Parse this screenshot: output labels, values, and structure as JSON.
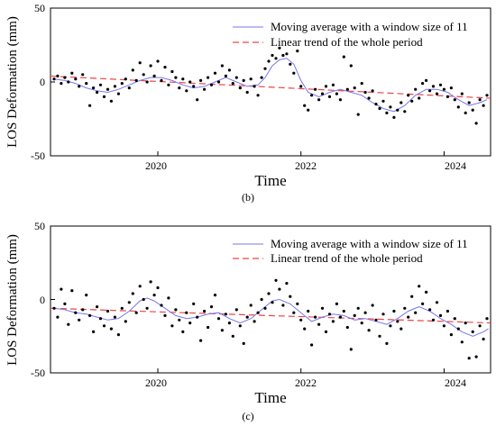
{
  "chart_data": [
    {
      "type": "scatter",
      "panel_label": "(b)",
      "xlabel": "Time",
      "ylabel": "LOS Deformation (mm)",
      "xlim": [
        2018.5,
        2024.65
      ],
      "ylim": [
        -50,
        50
      ],
      "x_ticks": [
        2020,
        2022,
        2024
      ],
      "x_tick_labels": [
        "2020",
        "2022",
        "2024"
      ],
      "y_ticks": [
        -50,
        0,
        50
      ],
      "y_tick_labels": [
        "-50",
        "0",
        "50"
      ],
      "legend_position": "top-right",
      "legend": [
        {
          "label": "Moving average with a window size of 11",
          "style": "solid",
          "color": "#7777ee"
        },
        {
          "label": "Linear trend of the whole period",
          "style": "dashed",
          "color": "#ee4444"
        }
      ],
      "points_color": "#000000",
      "points": [
        [
          2018.55,
          2
        ],
        [
          2018.6,
          4
        ],
        [
          2018.65,
          -1
        ],
        [
          2018.7,
          3
        ],
        [
          2018.75,
          0
        ],
        [
          2018.8,
          6
        ],
        [
          2018.85,
          2
        ],
        [
          2018.9,
          -3
        ],
        [
          2018.95,
          5
        ],
        [
          2019.0,
          -1
        ],
        [
          2019.05,
          -16
        ],
        [
          2019.1,
          -4
        ],
        [
          2019.15,
          -7
        ],
        [
          2019.2,
          -2
        ],
        [
          2019.25,
          -10
        ],
        [
          2019.3,
          -5
        ],
        [
          2019.35,
          -13
        ],
        [
          2019.4,
          -3
        ],
        [
          2019.45,
          -8
        ],
        [
          2019.5,
          -1
        ],
        [
          2019.55,
          2
        ],
        [
          2019.6,
          -4
        ],
        [
          2019.65,
          8
        ],
        [
          2019.7,
          1
        ],
        [
          2019.75,
          13
        ],
        [
          2019.8,
          5
        ],
        [
          2019.85,
          0
        ],
        [
          2019.9,
          11
        ],
        [
          2019.95,
          4
        ],
        [
          2020.0,
          14
        ],
        [
          2020.05,
          1
        ],
        [
          2020.1,
          10
        ],
        [
          2020.15,
          -2
        ],
        [
          2020.2,
          7
        ],
        [
          2020.25,
          3
        ],
        [
          2020.3,
          -4
        ],
        [
          2020.35,
          2
        ],
        [
          2020.4,
          -6
        ],
        [
          2020.45,
          0
        ],
        [
          2020.5,
          -3
        ],
        [
          2020.55,
          -12
        ],
        [
          2020.6,
          1
        ],
        [
          2020.65,
          -5
        ],
        [
          2020.7,
          3
        ],
        [
          2020.75,
          -2
        ],
        [
          2020.8,
          6
        ],
        [
          2020.85,
          0
        ],
        [
          2020.9,
          11
        ],
        [
          2020.95,
          4
        ],
        [
          2021.0,
          8
        ],
        [
          2021.05,
          -1
        ],
        [
          2021.1,
          3
        ],
        [
          2021.15,
          -4
        ],
        [
          2021.2,
          1
        ],
        [
          2021.25,
          -7
        ],
        [
          2021.3,
          2
        ],
        [
          2021.35,
          -3
        ],
        [
          2021.4,
          -9
        ],
        [
          2021.45,
          3
        ],
        [
          2021.5,
          9
        ],
        [
          2021.55,
          14
        ],
        [
          2021.6,
          18
        ],
        [
          2021.65,
          16
        ],
        [
          2021.7,
          23
        ],
        [
          2021.75,
          18
        ],
        [
          2021.8,
          19
        ],
        [
          2021.85,
          12
        ],
        [
          2021.9,
          6
        ],
        [
          2021.95,
          21
        ],
        [
          2022.0,
          -3
        ],
        [
          2022.05,
          -16
        ],
        [
          2022.1,
          -19
        ],
        [
          2022.15,
          -9
        ],
        [
          2022.2,
          -5
        ],
        [
          2022.25,
          -12
        ],
        [
          2022.3,
          -8
        ],
        [
          2022.35,
          -3
        ],
        [
          2022.4,
          -10
        ],
        [
          2022.45,
          -2
        ],
        [
          2022.5,
          -8
        ],
        [
          2022.55,
          -12
        ],
        [
          2022.6,
          17
        ],
        [
          2022.65,
          -5
        ],
        [
          2022.7,
          11
        ],
        [
          2022.75,
          -4
        ],
        [
          2022.8,
          -22
        ],
        [
          2022.85,
          -1
        ],
        [
          2022.9,
          -7
        ],
        [
          2022.95,
          -11
        ],
        [
          2023.0,
          -6
        ],
        [
          2023.05,
          -15
        ],
        [
          2023.1,
          -18
        ],
        [
          2023.15,
          -13
        ],
        [
          2023.2,
          -21
        ],
        [
          2023.25,
          -17
        ],
        [
          2023.3,
          -24
        ],
        [
          2023.35,
          -19
        ],
        [
          2023.4,
          -14
        ],
        [
          2023.45,
          -20
        ],
        [
          2023.5,
          -9
        ],
        [
          2023.55,
          -13
        ],
        [
          2023.6,
          -5
        ],
        [
          2023.65,
          -11
        ],
        [
          2023.7,
          -1
        ],
        [
          2023.75,
          1
        ],
        [
          2023.8,
          -6
        ],
        [
          2023.85,
          -3
        ],
        [
          2023.9,
          -8
        ],
        [
          2023.95,
          -2
        ],
        [
          2024.0,
          -5
        ],
        [
          2024.05,
          -10
        ],
        [
          2024.1,
          -4
        ],
        [
          2024.15,
          -12
        ],
        [
          2024.2,
          -17
        ],
        [
          2024.25,
          -8
        ],
        [
          2024.3,
          -21
        ],
        [
          2024.35,
          -14
        ],
        [
          2024.4,
          -19
        ],
        [
          2024.45,
          -28
        ],
        [
          2024.5,
          -12
        ],
        [
          2024.55,
          -16
        ],
        [
          2024.6,
          -9
        ]
      ],
      "moving_average_color": "#7777ee",
      "moving_average": [
        [
          2018.55,
          2
        ],
        [
          2018.7,
          1
        ],
        [
          2018.85,
          -1
        ],
        [
          2019.0,
          -4
        ],
        [
          2019.15,
          -6
        ],
        [
          2019.3,
          -7
        ],
        [
          2019.45,
          -5
        ],
        [
          2019.6,
          -2
        ],
        [
          2019.75,
          1
        ],
        [
          2019.9,
          3
        ],
        [
          2020.05,
          3
        ],
        [
          2020.2,
          1
        ],
        [
          2020.35,
          -2
        ],
        [
          2020.5,
          -4
        ],
        [
          2020.65,
          -3
        ],
        [
          2020.8,
          0
        ],
        [
          2020.95,
          3
        ],
        [
          2021.1,
          0
        ],
        [
          2021.25,
          -3
        ],
        [
          2021.4,
          -2
        ],
        [
          2021.5,
          3
        ],
        [
          2021.6,
          11
        ],
        [
          2021.7,
          15
        ],
        [
          2021.8,
          16
        ],
        [
          2021.9,
          12
        ],
        [
          2022.0,
          1
        ],
        [
          2022.1,
          -7
        ],
        [
          2022.25,
          -10
        ],
        [
          2022.4,
          -7
        ],
        [
          2022.55,
          -5
        ],
        [
          2022.7,
          -7
        ],
        [
          2022.85,
          -9
        ],
        [
          2023.0,
          -14
        ],
        [
          2023.15,
          -18
        ],
        [
          2023.3,
          -20
        ],
        [
          2023.45,
          -16
        ],
        [
          2023.6,
          -9
        ],
        [
          2023.75,
          -5
        ],
        [
          2023.9,
          -5
        ],
        [
          2024.05,
          -7
        ],
        [
          2024.2,
          -12
        ],
        [
          2024.35,
          -16
        ],
        [
          2024.5,
          -14
        ],
        [
          2024.6,
          -12
        ]
      ],
      "trend_color": "#ee4444",
      "trend": [
        [
          2018.5,
          4
        ],
        [
          2024.65,
          -11
        ]
      ]
    },
    {
      "type": "scatter",
      "panel_label": "(c)",
      "xlabel": "Time",
      "ylabel": "LOS Deformation (mm)",
      "xlim": [
        2018.5,
        2024.65
      ],
      "ylim": [
        -50,
        50
      ],
      "x_ticks": [
        2020,
        2022,
        2024
      ],
      "x_tick_labels": [
        "2020",
        "2022",
        "2024"
      ],
      "y_ticks": [
        -50,
        0,
        50
      ],
      "y_tick_labels": [
        "-50",
        "0",
        "50"
      ],
      "legend_position": "top-right",
      "legend": [
        {
          "label": "Moving average with a window size of 11",
          "style": "solid",
          "color": "#7777ee"
        },
        {
          "label": "Linear trend of the whole period",
          "style": "dashed",
          "color": "#ee4444"
        }
      ],
      "points_color": "#000000",
      "points": [
        [
          2018.55,
          -6
        ],
        [
          2018.6,
          -12
        ],
        [
          2018.65,
          7
        ],
        [
          2018.7,
          -3
        ],
        [
          2018.75,
          -17
        ],
        [
          2018.8,
          6
        ],
        [
          2018.85,
          -9
        ],
        [
          2018.9,
          -14
        ],
        [
          2018.95,
          -7
        ],
        [
          2019.0,
          3
        ],
        [
          2019.05,
          -11
        ],
        [
          2019.1,
          -22
        ],
        [
          2019.15,
          -5
        ],
        [
          2019.2,
          -13
        ],
        [
          2019.25,
          -18
        ],
        [
          2019.3,
          -8
        ],
        [
          2019.35,
          -20
        ],
        [
          2019.4,
          -12
        ],
        [
          2019.45,
          -24
        ],
        [
          2019.5,
          -6
        ],
        [
          2019.55,
          -15
        ],
        [
          2019.6,
          -2
        ],
        [
          2019.65,
          4
        ],
        [
          2019.7,
          -9
        ],
        [
          2019.75,
          9
        ],
        [
          2019.8,
          0
        ],
        [
          2019.85,
          -6
        ],
        [
          2019.9,
          12
        ],
        [
          2019.95,
          3
        ],
        [
          2020.0,
          8
        ],
        [
          2020.05,
          -4
        ],
        [
          2020.1,
          -11
        ],
        [
          2020.15,
          1
        ],
        [
          2020.2,
          -18
        ],
        [
          2020.25,
          -7
        ],
        [
          2020.3,
          -14
        ],
        [
          2020.35,
          -22
        ],
        [
          2020.4,
          -9
        ],
        [
          2020.45,
          -16
        ],
        [
          2020.5,
          -3
        ],
        [
          2020.55,
          -12
        ],
        [
          2020.6,
          -28
        ],
        [
          2020.65,
          -8
        ],
        [
          2020.7,
          -19
        ],
        [
          2020.75,
          -5
        ],
        [
          2020.8,
          3
        ],
        [
          2020.85,
          -13
        ],
        [
          2020.9,
          -21
        ],
        [
          2020.95,
          -10
        ],
        [
          2021.0,
          -16
        ],
        [
          2021.05,
          -25
        ],
        [
          2021.1,
          -7
        ],
        [
          2021.15,
          -18
        ],
        [
          2021.2,
          -30
        ],
        [
          2021.25,
          -12
        ],
        [
          2021.3,
          -4
        ],
        [
          2021.35,
          -15
        ],
        [
          2021.4,
          -9
        ],
        [
          2021.45,
          0
        ],
        [
          2021.5,
          -6
        ],
        [
          2021.55,
          4
        ],
        [
          2021.6,
          -2
        ],
        [
          2021.65,
          13
        ],
        [
          2021.7,
          7
        ],
        [
          2021.75,
          -4
        ],
        [
          2021.8,
          11
        ],
        [
          2021.85,
          2
        ],
        [
          2021.9,
          -9
        ],
        [
          2021.95,
          -3
        ],
        [
          2022.0,
          -14
        ],
        [
          2022.05,
          -20
        ],
        [
          2022.1,
          -8
        ],
        [
          2022.15,
          -31
        ],
        [
          2022.2,
          -12
        ],
        [
          2022.25,
          -17
        ],
        [
          2022.3,
          -6
        ],
        [
          2022.35,
          -22
        ],
        [
          2022.4,
          -10
        ],
        [
          2022.45,
          -15
        ],
        [
          2022.5,
          -3
        ],
        [
          2022.55,
          -12
        ],
        [
          2022.6,
          -8
        ],
        [
          2022.65,
          -19
        ],
        [
          2022.7,
          -34
        ],
        [
          2022.75,
          -11
        ],
        [
          2022.8,
          -6
        ],
        [
          2022.85,
          -16
        ],
        [
          2022.9,
          -9
        ],
        [
          2022.95,
          -21
        ],
        [
          2023.0,
          -4
        ],
        [
          2023.05,
          -14
        ],
        [
          2023.1,
          -25
        ],
        [
          2023.15,
          -10
        ],
        [
          2023.2,
          -30
        ],
        [
          2023.25,
          -18
        ],
        [
          2023.3,
          -8
        ],
        [
          2023.35,
          -15
        ],
        [
          2023.4,
          -20
        ],
        [
          2023.45,
          -6
        ],
        [
          2023.5,
          -12
        ],
        [
          2023.55,
          2
        ],
        [
          2023.6,
          -9
        ],
        [
          2023.65,
          9
        ],
        [
          2023.7,
          -3
        ],
        [
          2023.75,
          5
        ],
        [
          2023.8,
          -7
        ],
        [
          2023.85,
          -14
        ],
        [
          2023.9,
          -2
        ],
        [
          2023.95,
          -11
        ],
        [
          2024.0,
          -18
        ],
        [
          2024.05,
          -8
        ],
        [
          2024.1,
          -24
        ],
        [
          2024.15,
          -13
        ],
        [
          2024.2,
          -20
        ],
        [
          2024.25,
          -29
        ],
        [
          2024.3,
          -16
        ],
        [
          2024.35,
          -40
        ],
        [
          2024.4,
          -22
        ],
        [
          2024.45,
          -39
        ],
        [
          2024.5,
          -18
        ],
        [
          2024.55,
          -27
        ],
        [
          2024.6,
          -13
        ]
      ],
      "moving_average_color": "#7777ee",
      "moving_average": [
        [
          2018.55,
          -6
        ],
        [
          2018.7,
          -7
        ],
        [
          2018.85,
          -9
        ],
        [
          2019.0,
          -10
        ],
        [
          2019.15,
          -12
        ],
        [
          2019.3,
          -14
        ],
        [
          2019.45,
          -13
        ],
        [
          2019.6,
          -8
        ],
        [
          2019.75,
          -1
        ],
        [
          2019.85,
          1
        ],
        [
          2019.95,
          -1
        ],
        [
          2020.1,
          -6
        ],
        [
          2020.25,
          -11
        ],
        [
          2020.4,
          -13
        ],
        [
          2020.55,
          -12
        ],
        [
          2020.7,
          -10
        ],
        [
          2020.85,
          -9
        ],
        [
          2021.0,
          -13
        ],
        [
          2021.15,
          -16
        ],
        [
          2021.3,
          -13
        ],
        [
          2021.45,
          -7
        ],
        [
          2021.6,
          -1
        ],
        [
          2021.7,
          0
        ],
        [
          2021.85,
          -3
        ],
        [
          2022.0,
          -9
        ],
        [
          2022.15,
          -15
        ],
        [
          2022.3,
          -12
        ],
        [
          2022.45,
          -10
        ],
        [
          2022.6,
          -11
        ],
        [
          2022.75,
          -14
        ],
        [
          2022.9,
          -13
        ],
        [
          2023.05,
          -15
        ],
        [
          2023.2,
          -17
        ],
        [
          2023.35,
          -13
        ],
        [
          2023.5,
          -8
        ],
        [
          2023.65,
          -5
        ],
        [
          2023.8,
          -8
        ],
        [
          2023.95,
          -13
        ],
        [
          2024.1,
          -17
        ],
        [
          2024.25,
          -22
        ],
        [
          2024.4,
          -25
        ],
        [
          2024.55,
          -22
        ],
        [
          2024.62,
          -20
        ]
      ],
      "trend_color": "#ee4444",
      "trend": [
        [
          2018.5,
          -6
        ],
        [
          2024.65,
          -16
        ]
      ]
    }
  ]
}
